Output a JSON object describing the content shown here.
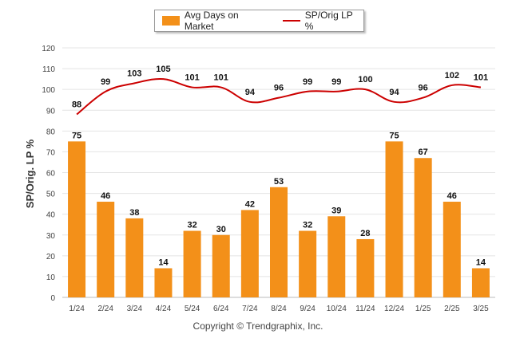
{
  "legend": {
    "bar_label": "Avg Days on Market",
    "line_label": "SP/Orig LP %"
  },
  "footer": {
    "copyright": "Copyright © Trendgraphix, Inc."
  },
  "colors": {
    "bar": "#F39019",
    "line": "#CC0000",
    "grid": "#e4e4e4"
  },
  "chart_data": {
    "type": "bar",
    "ylabel": "SP/Orig. LP %",
    "ylim": [
      0,
      120
    ],
    "yticks": [
      0,
      10,
      20,
      30,
      40,
      50,
      60,
      70,
      80,
      90,
      100,
      110,
      120
    ],
    "categories": [
      "1/24",
      "2/24",
      "3/24",
      "4/24",
      "5/24",
      "6/24",
      "7/24",
      "8/24",
      "9/24",
      "10/24",
      "11/24",
      "12/24",
      "1/25",
      "2/25",
      "3/25"
    ],
    "series": [
      {
        "name": "Avg Days on Market",
        "type": "bar",
        "values": [
          75,
          46,
          38,
          14,
          32,
          30,
          42,
          53,
          32,
          39,
          28,
          75,
          67,
          46,
          14
        ]
      },
      {
        "name": "SP/Orig LP %",
        "type": "line",
        "values": [
          88,
          99,
          103,
          105,
          101,
          101,
          94,
          96,
          99,
          99,
          100,
          94,
          96,
          102,
          101
        ]
      }
    ],
    "grid": true,
    "legend_position": "top-center"
  }
}
